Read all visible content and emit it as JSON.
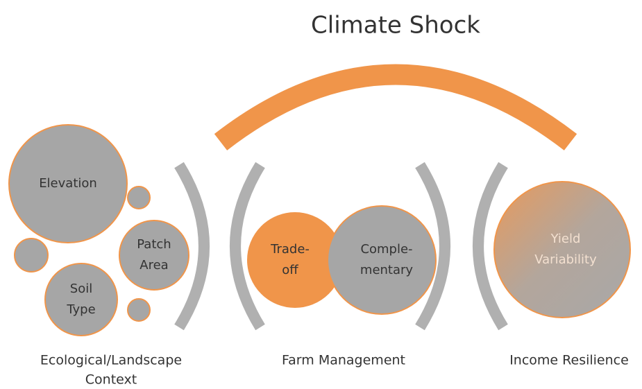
{
  "title": "Climate Shock",
  "nodes": [
    {
      "lines": [
        "Elevation"
      ]
    },
    {
      "lines": [
        "Patch",
        "Area"
      ]
    },
    {
      "lines": [
        "Soil",
        "Type"
      ]
    },
    {
      "lines": [
        "Trade-",
        "off"
      ]
    },
    {
      "lines": [
        "Comple-",
        "mentary"
      ]
    },
    {
      "lines": [
        "Yield",
        "Variability"
      ]
    }
  ],
  "sections": [
    {
      "lines": [
        "Ecological/Landscape",
        "Context"
      ]
    },
    {
      "lines": [
        "Farm Management"
      ]
    },
    {
      "lines": [
        "Income Resilience"
      ]
    }
  ]
}
